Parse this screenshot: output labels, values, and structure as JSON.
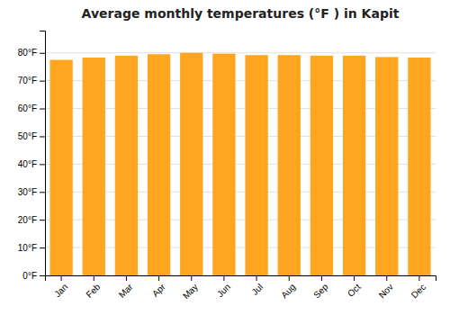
{
  "chart_data": {
    "type": "bar",
    "title": "Average monthly temperatures (°F ) in Kapit",
    "categories": [
      "Jan",
      "Feb",
      "Mar",
      "Apr",
      "May",
      "Jun",
      "Jul",
      "Aug",
      "Sep",
      "Oct",
      "Nov",
      "Dec"
    ],
    "values": [
      77.5,
      78.3,
      79.0,
      79.5,
      80.0,
      79.7,
      79.2,
      79.2,
      79.0,
      79.0,
      78.5,
      78.3
    ],
    "color": "#FFA520",
    "ylim": [
      0,
      88
    ],
    "yticks": [
      {
        "value": 0,
        "label": "0°F"
      },
      {
        "value": 10,
        "label": "10°F"
      },
      {
        "value": 20,
        "label": "20°F"
      },
      {
        "value": 30,
        "label": "30°F"
      },
      {
        "value": 40,
        "label": "40°F"
      },
      {
        "value": 50,
        "label": "50°F"
      },
      {
        "value": 60,
        "label": "60°F"
      },
      {
        "value": 70,
        "label": "70°F"
      },
      {
        "value": 80,
        "label": "80°F"
      }
    ],
    "grid": true
  }
}
